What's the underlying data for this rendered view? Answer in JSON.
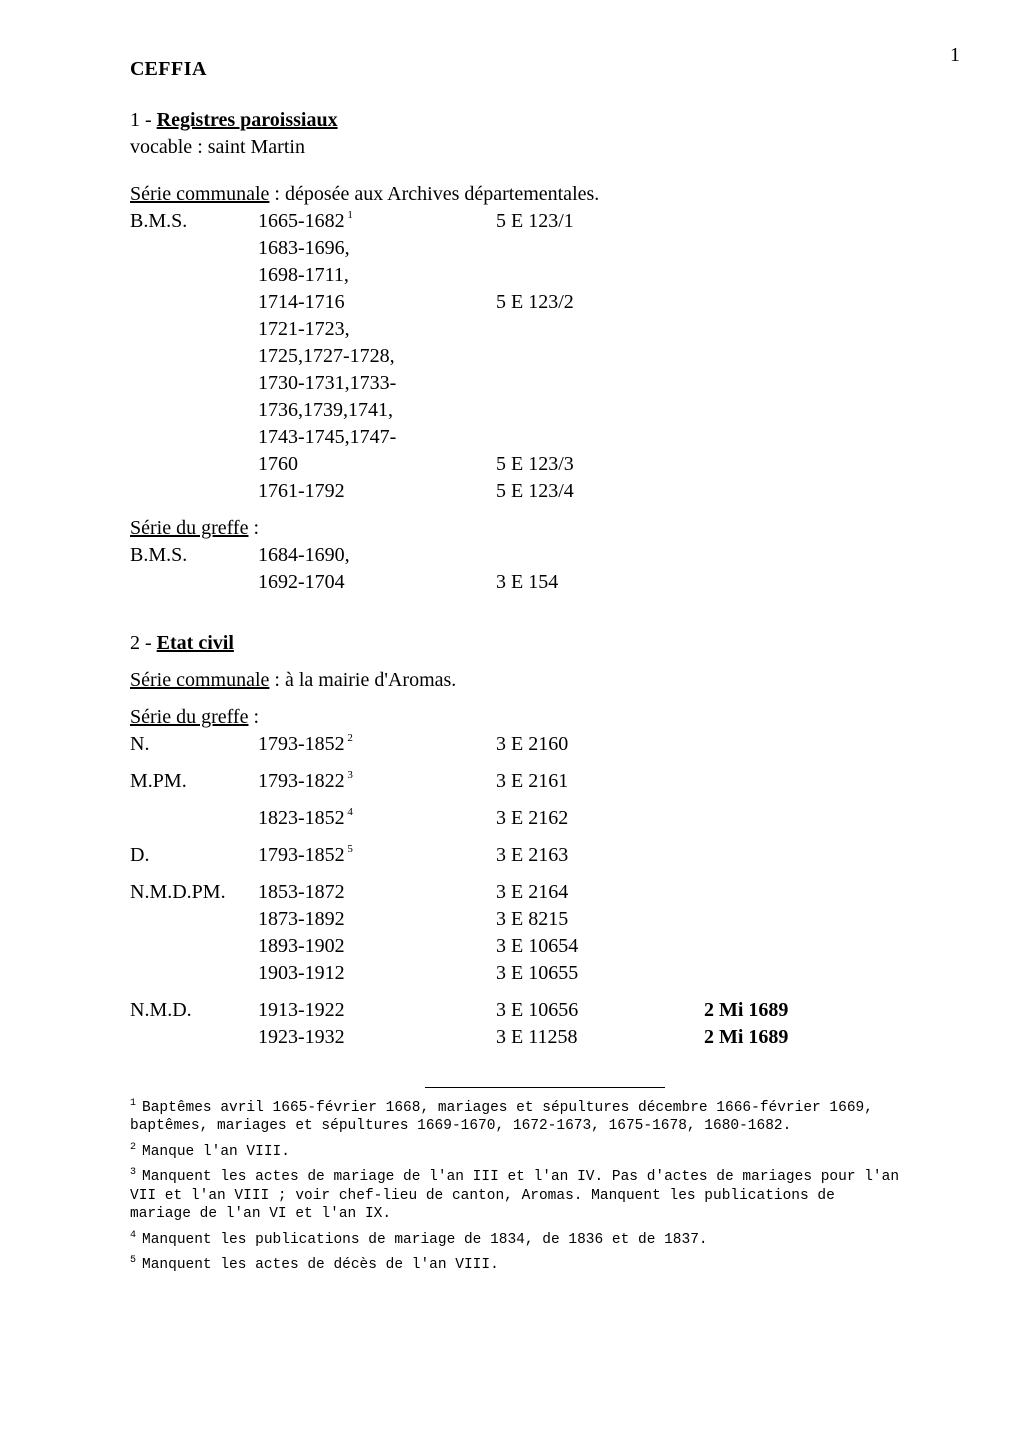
{
  "page_number": "1",
  "title_first": "C",
  "title_rest": "EFFIA",
  "sec1_prefix": "1 - ",
  "sec1_title": "Registres paroissiaux",
  "vocable_label": "vocable : saint Martin",
  "serie_communale_label": "Série communale",
  "serie_communale_tail_1": " : déposée aux Archives départementales.",
  "bms_label": "B.M.S.",
  "bms_rows": [
    {
      "range": "1665-1682",
      "ref": "5 E 123/1",
      "note": "1"
    },
    {
      "range": "1683-1696,"
    },
    {
      "range": "1698-1711,"
    },
    {
      "range": "1714-1716",
      "ref": "5 E 123/2"
    },
    {
      "range": "1721-1723,"
    },
    {
      "range": "1725,1727-1728,"
    },
    {
      "range": "1730-1731,1733-"
    },
    {
      "range": "1736,1739,1741,"
    },
    {
      "range": "1743-1745,1747-"
    },
    {
      "range": "1760",
      "ref": "5 E 123/3"
    },
    {
      "range": "1761-1792",
      "ref": "5 E 123/4"
    }
  ],
  "serie_greffe_label": "Série du greffe",
  "serie_greffe_tail": " :",
  "greffe1_rows": [
    {
      "label": "B.M.S.",
      "range": "1684-1690,"
    },
    {
      "range": "1692-1704",
      "ref": "3 E 154"
    }
  ],
  "sec2_prefix": "2 - ",
  "sec2_title": "Etat civil",
  "serie_communale_tail_2": " : à la mairie d'Aromas.",
  "greffe2": [
    {
      "label": "N.",
      "range": "1793-1852",
      "note": "2",
      "ref": "3 E 2160",
      "gap_after": true
    },
    {
      "label": "M.PM.",
      "range": "1793-1822",
      "note": "3",
      "ref": "3 E 2161",
      "gap_after": true
    },
    {
      "label": "",
      "range": "1823-1852",
      "note": "4",
      "ref": "3 E 2162",
      "gap_after": true
    },
    {
      "label": "D.",
      "range": "1793-1852",
      "note": "5",
      "ref": "3 E 2163",
      "gap_after": true
    },
    {
      "label": "N.M.D.PM.",
      "range": "1853-1872",
      "ref": "3 E 2164"
    },
    {
      "label": "",
      "range": "1873-1892",
      "ref": "3 E 8215"
    },
    {
      "label": "",
      "range": "1893-1902",
      "ref": "3 E 10654"
    },
    {
      "label": "",
      "range": "1903-1912",
      "ref": "3 E 10655",
      "gap_after": true
    },
    {
      "label": "N.M.D.",
      "range": "1913-1922",
      "ref": "3 E 10656",
      "extra": "2 Mi 1689"
    },
    {
      "label": "",
      "range": "1923-1932",
      "ref": "3 E 11258",
      "extra": "2 Mi 1689"
    }
  ],
  "footnotes": [
    {
      "num": "1",
      "text": "Baptêmes avril 1665-février 1668, mariages et sépultures décembre 1666-février 1669, baptêmes, mariages et sépultures 1669-1670, 1672-1673, 1675-1678, 1680-1682."
    },
    {
      "num": "2",
      "text": "Manque l'an VIII."
    },
    {
      "num": "3",
      "text": "Manquent les actes de mariage de l'an III et l'an IV. Pas d'actes de mariages pour l'an VII et l'an VIII ; voir chef-lieu de canton, Aromas. Manquent les publications de mariage de l'an VI et l'an IX."
    },
    {
      "num": "4",
      "text": "Manquent les publications de mariage de 1834, de 1836 et de 1837."
    },
    {
      "num": "5",
      "text": "Manquent les actes de décès de l'an VIII."
    }
  ]
}
